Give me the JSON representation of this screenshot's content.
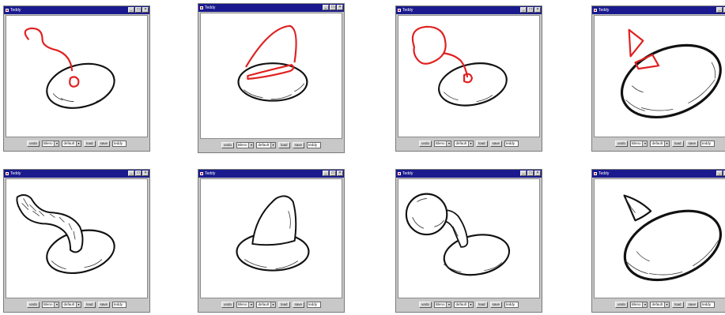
{
  "window_title": "Teddy",
  "window_buttons": [
    "_",
    "□",
    "×"
  ],
  "toolbar": {
    "undo_label": "undo",
    "mode_select": "Bleno",
    "style_select": "default",
    "load_label": "load",
    "save_label": "save",
    "file_input": "teddy"
  },
  "colors": {
    "titlebar": "#1a1a8e",
    "stroke_red": "#e02020",
    "window_gray": "#c8c8c8"
  },
  "panels": [
    {
      "sketch": "loop-stroke-to-body"
    },
    {
      "sketch": "arc-stroke-on-body"
    },
    {
      "sketch": "balloon-stroke-on-body"
    },
    {
      "sketch": "triangle-stroke-on-body"
    },
    {
      "sketch": "tube-result"
    },
    {
      "sketch": "ear-result"
    },
    {
      "sketch": "head-result"
    },
    {
      "sketch": "horn-result"
    }
  ]
}
